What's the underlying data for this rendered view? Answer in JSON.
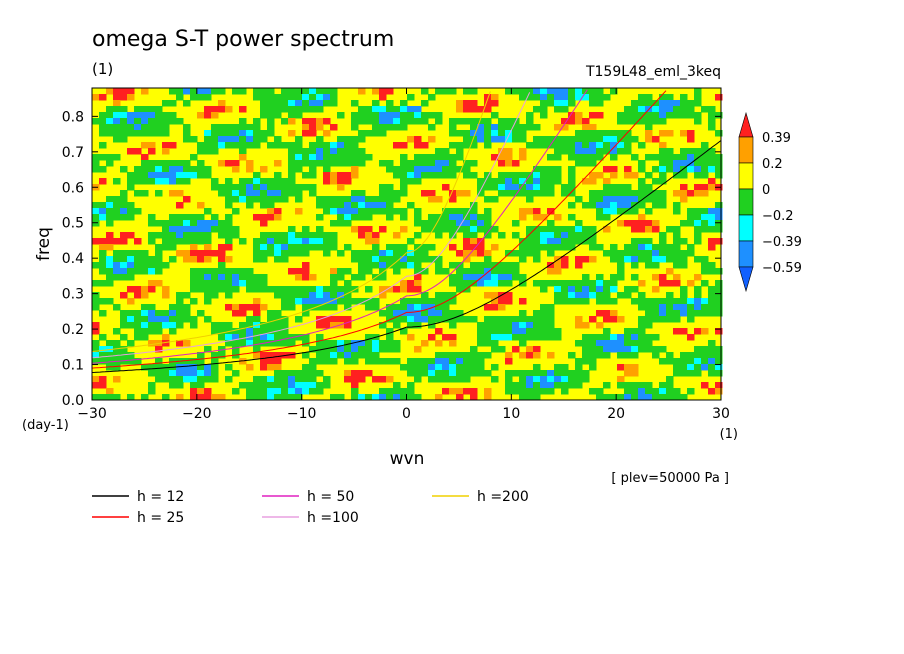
{
  "chart_data": {
    "type": "heatmap",
    "title": "omega S-T power spectrum",
    "subtitle": "(1)",
    "experiment": "T159L48_eml_3keq",
    "xlabel": "wvn",
    "ylabel": "freq",
    "x_unit": "(1)",
    "y_unit": "(day-1)",
    "level_note": "[ plev=50000 Pa ]",
    "xlim": [
      -30,
      30
    ],
    "ylim": [
      0,
      0.88
    ],
    "xticks": [
      -30,
      -20,
      -10,
      0,
      10,
      20,
      30
    ],
    "yticks": [
      0.0,
      0.1,
      0.2,
      0.3,
      0.4,
      0.5,
      0.6,
      0.7,
      0.8
    ],
    "ytick_labels": [
      "0.0",
      "0.1",
      "0.2",
      "0.3",
      "0.4",
      "0.5",
      "0.6",
      "0.7",
      "0.8"
    ],
    "colorbar": {
      "labels": [
        "0.39",
        "0.2",
        "0",
        "-0.2",
        "-0.39",
        "-0.59"
      ],
      "colors": [
        "#ff2020",
        "#ffa000",
        "#ffff00",
        "#20d020",
        "#00ffff",
        "#1e90ff",
        "#1060ff"
      ]
    },
    "field_description_levels": [
      -0.59,
      -0.39,
      -0.2,
      0,
      0.2,
      0.39
    ],
    "dispersion_curves": [
      {
        "name": "h = 12",
        "color": "#000000",
        "h": 12
      },
      {
        "name": "h = 25",
        "color": "#ff0000",
        "h": 25
      },
      {
        "name": "h = 50",
        "color": "#e020c0",
        "h": 50
      },
      {
        "name": "h =100",
        "color": "#e8a0e0",
        "h": 100
      },
      {
        "name": "h =200",
        "color": "#f0d000",
        "h": 200
      }
    ]
  }
}
